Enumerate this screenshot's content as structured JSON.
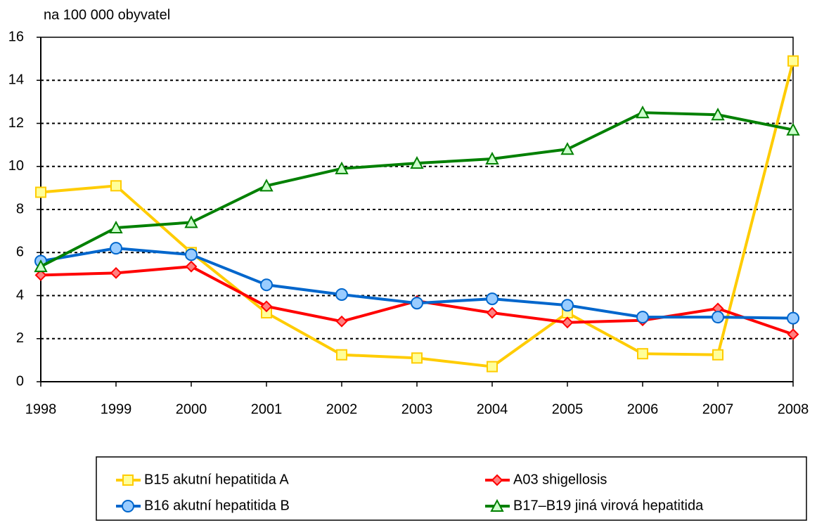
{
  "chart_data": {
    "type": "line",
    "subtitle": "na 100 000 obyvatel",
    "categories": [
      "1998",
      "1999",
      "2000",
      "2001",
      "2002",
      "2003",
      "2004",
      "2005",
      "2006",
      "2007",
      "2008"
    ],
    "series": [
      {
        "name": "B15 akutní hepatitida A",
        "color": "#ffcc00",
        "marker": "square",
        "marker_fill": "#ffff99",
        "values": [
          8.8,
          9.1,
          6.0,
          3.2,
          1.25,
          1.1,
          0.7,
          3.2,
          1.3,
          1.25,
          14.9
        ]
      },
      {
        "name": "A03 shigellosis",
        "color": "#ff0000",
        "marker": "diamond",
        "marker_fill": "#ff8080",
        "values": [
          4.95,
          5.05,
          5.35,
          3.5,
          2.8,
          3.75,
          3.2,
          2.75,
          2.85,
          3.4,
          2.2
        ]
      },
      {
        "name": "B16 akutní hepatitida B",
        "color": "#0066cc",
        "marker": "circle",
        "marker_fill": "#99ccff",
        "values": [
          5.6,
          6.2,
          5.9,
          4.5,
          4.05,
          3.65,
          3.85,
          3.55,
          3.0,
          3.0,
          2.95
        ]
      },
      {
        "name": "B17–B19 jiná virová hepatitida",
        "color": "#008000",
        "marker": "triangle",
        "marker_fill": "#ccffcc",
        "values": [
          5.35,
          7.15,
          7.4,
          9.1,
          9.9,
          10.15,
          10.35,
          10.8,
          12.5,
          12.4,
          11.7
        ]
      }
    ],
    "ylim": [
      0,
      16
    ],
    "yticks": [
      0,
      2,
      4,
      6,
      8,
      10,
      12,
      14,
      16
    ],
    "grid": true,
    "legend": "bottom"
  }
}
